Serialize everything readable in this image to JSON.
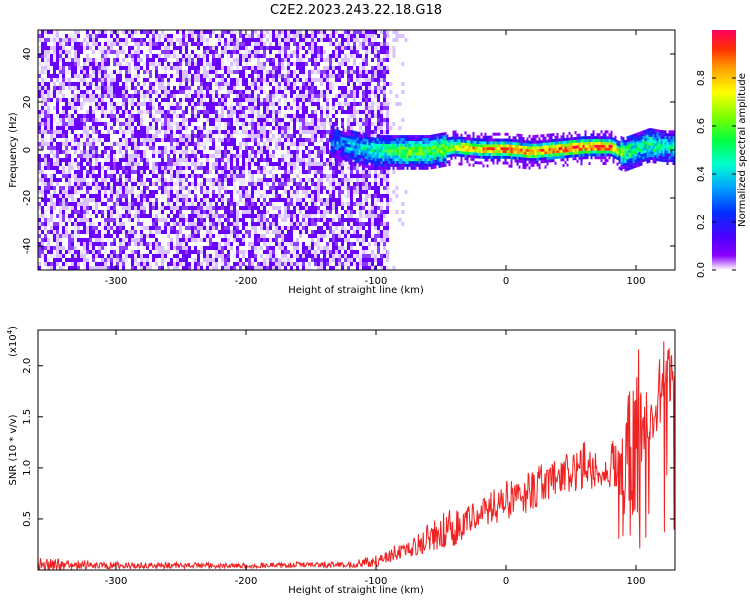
{
  "figure_title": "C2E2.2023.243.22.18.G18",
  "colors": {
    "spectrum_purple": "#6a00ff",
    "spectrum_light_purple": "#d9c2ff",
    "snr_line": "#ee2222",
    "colormap": [
      "#ffffff",
      "#8a00ff",
      "#4b00ff",
      "#0030ff",
      "#00a0ff",
      "#00ffd0",
      "#00ff40",
      "#80ff00",
      "#ffff00",
      "#ffa000",
      "#ff3000",
      "#ff0060"
    ]
  },
  "chart_data": [
    {
      "type": "heatmap",
      "title": "C2E2.2023.243.22.18.G18",
      "xlabel": "Height of straight line (km)",
      "ylabel": "Frequency (Hz)",
      "xlim": [
        -360,
        130
      ],
      "ylim": [
        -50,
        50
      ],
      "x_ticks": [
        -300,
        -200,
        -100,
        0,
        100
      ],
      "y_ticks": [
        -40,
        -20,
        0,
        20,
        40
      ],
      "grid": false,
      "colorbar": {
        "label": "Normalized spectral amplitude",
        "range": [
          0.0,
          1.0
        ],
        "ticks": [
          "0.0",
          "0.2",
          "0.4",
          "0.6",
          "0.8"
        ]
      },
      "noise_region_x": [
        -360,
        -92
      ],
      "signal_track": {
        "x": [
          -135,
          -120,
          -100,
          -80,
          -60,
          -40,
          -20,
          0,
          20,
          40,
          60,
          80,
          90,
          100,
          110,
          120,
          130
        ],
        "frequency_hz": [
          4,
          2,
          0,
          0,
          0,
          2,
          1,
          1,
          0,
          1,
          2,
          2,
          -1,
          1,
          3,
          2,
          2
        ],
        "peak_amplitude": [
          0.3,
          0.4,
          0.5,
          0.65,
          0.6,
          0.75,
          0.85,
          0.95,
          0.9,
          0.95,
          0.95,
          0.95,
          0.6,
          0.5,
          0.55,
          0.5,
          0.45
        ]
      }
    },
    {
      "type": "line",
      "xlabel": "Height of straight line (km)",
      "ylabel": "SNR (10 * v/v)",
      "y_multiplier": "(x10",
      "y_multiplier_exp": "4",
      "xlim": [
        -360,
        130
      ],
      "ylim": [
        0,
        2.35
      ],
      "x_ticks": [
        -300,
        -200,
        -100,
        0,
        100
      ],
      "y_ticks": [
        "0.5",
        "1.0",
        "1.5",
        "2.0"
      ],
      "grid": false,
      "envelope": {
        "x": [
          -360,
          -300,
          -200,
          -120,
          -100,
          -80,
          -60,
          -40,
          -20,
          0,
          20,
          40,
          60,
          75,
          90,
          100,
          110,
          120,
          130
        ],
        "y": [
          0.04,
          0.04,
          0.04,
          0.05,
          0.08,
          0.18,
          0.28,
          0.4,
          0.55,
          0.65,
          0.75,
          0.9,
          0.98,
          0.92,
          1.0,
          1.2,
          1.4,
          1.7,
          2.0
        ],
        "y_peak": [
          0.12,
          0.08,
          0.07,
          0.09,
          0.15,
          0.28,
          0.45,
          0.65,
          0.75,
          0.88,
          1.0,
          1.1,
          1.28,
          1.05,
          1.5,
          2.35,
          1.6,
          2.28,
          2.2
        ]
      }
    }
  ]
}
